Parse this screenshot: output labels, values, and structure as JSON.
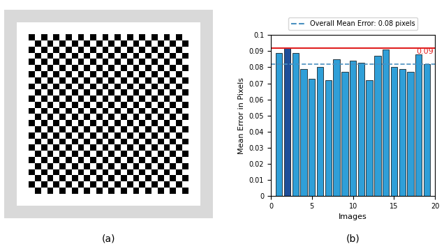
{
  "chart_data": {
    "type": "bar",
    "x": [
      1,
      2,
      3,
      4,
      5,
      6,
      7,
      8,
      9,
      10,
      11,
      12,
      13,
      14,
      15,
      16,
      17,
      18,
      19
    ],
    "values": [
      0.089,
      0.092,
      0.089,
      0.079,
      0.073,
      0.08,
      0.072,
      0.085,
      0.077,
      0.084,
      0.083,
      0.072,
      0.087,
      0.091,
      0.08,
      0.079,
      0.077,
      0.088,
      0.082
    ],
    "colors": [
      "#2f9fd8",
      "#1f4e99",
      "#2f9fd8",
      "#2f9fd8",
      "#2f9fd8",
      "#2f9fd8",
      "#2f9fd8",
      "#2f9fd8",
      "#2f9fd8",
      "#2f9fd8",
      "#2f9fd8",
      "#2f9fd8",
      "#2f9fd8",
      "#2f9fd8",
      "#2f9fd8",
      "#2f9fd8",
      "#2f9fd8",
      "#2f9fd8",
      "#2f9fd8"
    ],
    "x_label": "Images",
    "y_label": "Mean Error in Pixels",
    "xlim": [
      0,
      20
    ],
    "xticks": [
      0,
      5,
      10,
      15,
      20
    ],
    "ylim": [
      0,
      0.1
    ],
    "yticks": [
      0,
      0.01,
      0.02,
      0.03,
      0.04,
      0.05,
      0.06,
      0.07,
      0.08,
      0.09,
      0.1
    ],
    "grid": false,
    "legend": "lower center",
    "mean_line": {
      "name": "Overall Mean Error: 0.08 pixels",
      "value": 0.082,
      "color": "#4a90c0",
      "line_style": "dashed"
    },
    "max_line": {
      "value": 0.092,
      "label": "0.09",
      "color": "#e02020",
      "line_style": "solid"
    }
  },
  "panel_labels": [
    "(a)",
    "(b)"
  ]
}
